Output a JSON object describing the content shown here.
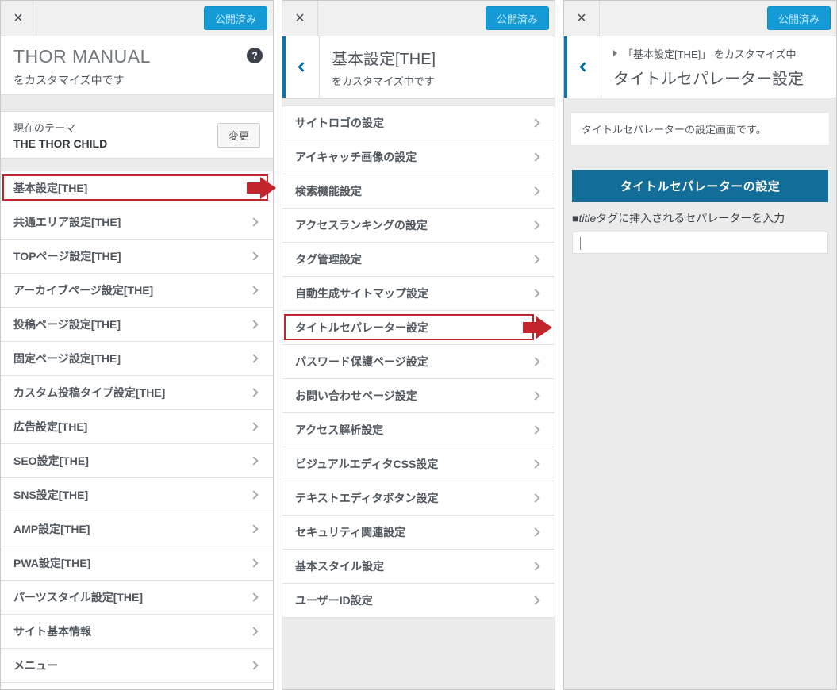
{
  "chrome": {
    "publish_label": "公開済み",
    "close_glyph": "×",
    "help_glyph": "?"
  },
  "colors": {
    "highlight_red": "#c2252c",
    "heading_blue": "#136d99",
    "publish_blue": "#149bd7",
    "link_blue": "#0073aa"
  },
  "panels": {
    "left": {
      "title": "THOR MANUAL",
      "subtitle": "をカスタマイズ中です",
      "theme": {
        "label": "現在のテーマ",
        "name": "THE THOR CHILD",
        "change_button": "変更"
      },
      "items": [
        {
          "label": "基本設定[THE]",
          "highlighted": true
        },
        {
          "label": "共通エリア設定[THE]"
        },
        {
          "label": "TOPページ設定[THE]"
        },
        {
          "label": "アーカイブページ設定[THE]"
        },
        {
          "label": "投稿ページ設定[THE]"
        },
        {
          "label": "固定ページ設定[THE]"
        },
        {
          "label": "カスタム投稿タイプ設定[THE]"
        },
        {
          "label": "広告設定[THE]"
        },
        {
          "label": "SEO設定[THE]"
        },
        {
          "label": "SNS設定[THE]"
        },
        {
          "label": "AMP設定[THE]"
        },
        {
          "label": "PWA設定[THE]"
        },
        {
          "label": "パーツスタイル設定[THE]"
        },
        {
          "label": "サイト基本情報"
        },
        {
          "label": "メニュー"
        }
      ]
    },
    "middle": {
      "title": "基本設定[THE]",
      "subtitle": "をカスタマイズ中です",
      "items": [
        {
          "label": "サイトロゴの設定"
        },
        {
          "label": "アイキャッチ画像の設定"
        },
        {
          "label": "検索機能設定"
        },
        {
          "label": "アクセスランキングの設定"
        },
        {
          "label": "タグ管理設定"
        },
        {
          "label": "自動生成サイトマップ設定"
        },
        {
          "label": "タイトルセパレーター設定",
          "highlighted": true
        },
        {
          "label": "パスワード保護ページ設定"
        },
        {
          "label": "お問い合わせページ設定"
        },
        {
          "label": "アクセス解析設定"
        },
        {
          "label": "ビジュアルエディタCSS設定"
        },
        {
          "label": "テキストエディタボタン設定"
        },
        {
          "label": "セキュリティ関連設定"
        },
        {
          "label": "基本スタイル設定"
        },
        {
          "label": "ユーザーID設定"
        }
      ]
    },
    "right": {
      "breadcrumb": "「基本設定[THE]」 をカスタマイズ中",
      "title": "タイトルセパレーター設定",
      "description": "タイトルセパレーターの設定画面です。",
      "heading": "タイトルセパレーターの設定",
      "field_label": {
        "prefix": "■",
        "em": "title",
        "rest": "タグに挿入されるセパレーターを入力"
      },
      "input_value": ""
    }
  }
}
